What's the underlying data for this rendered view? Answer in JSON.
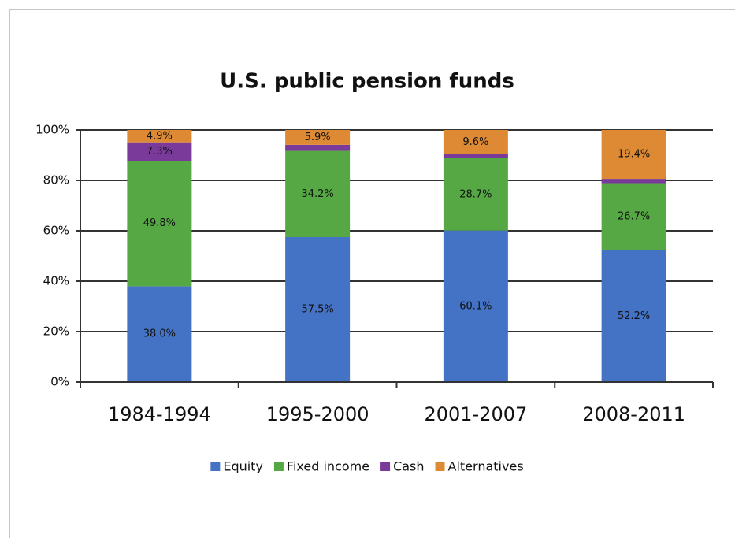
{
  "chart_data": {
    "type": "stacked_bar",
    "title": "U.S. public pension funds",
    "categories": [
      "1984-1994",
      "1995-2000",
      "2001-2007",
      "2008-2011"
    ],
    "series": [
      {
        "name": "Equity",
        "color": "#4472c4",
        "values": [
          38.0,
          57.5,
          60.1,
          52.2
        ],
        "value_labels": [
          "38.0%",
          "57.5%",
          "60.1%",
          "52.2%"
        ]
      },
      {
        "name": "Fixed income",
        "color": "#56a845",
        "values": [
          49.8,
          34.2,
          28.7,
          26.7
        ],
        "value_labels": [
          "49.8%",
          "34.2%",
          "28.7%",
          "26.7%"
        ]
      },
      {
        "name": "Cash",
        "color": "#7a3a9a",
        "values": [
          7.3,
          2.4,
          1.6,
          1.7
        ],
        "value_labels": [
          "7.3%",
          null,
          null,
          null
        ]
      },
      {
        "name": "Alternatives",
        "color": "#de8a35",
        "values": [
          4.9,
          5.9,
          9.6,
          19.4
        ],
        "value_labels": [
          "4.9%",
          "5.9%",
          "9.6%",
          "19.4%"
        ]
      }
    ],
    "ylim": [
      0,
      100
    ],
    "yticks": [
      {
        "value": 0,
        "label": "0%"
      },
      {
        "value": 20,
        "label": "20%"
      },
      {
        "value": 40,
        "label": "40%"
      },
      {
        "value": 60,
        "label": "60%"
      },
      {
        "value": 80,
        "label": "80%"
      },
      {
        "value": 100,
        "label": "100%"
      }
    ],
    "grid": true,
    "legend": "bottom"
  }
}
